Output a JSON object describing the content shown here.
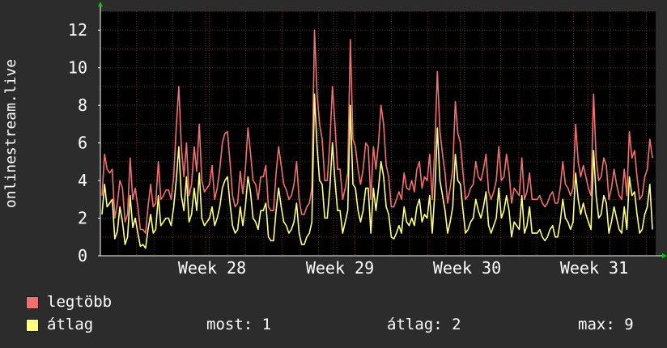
{
  "chart_data": {
    "type": "line",
    "ylabel": "onlinestream.live",
    "ylim": [
      0,
      13
    ],
    "y_ticks": [
      0,
      2,
      4,
      6,
      8,
      10,
      12
    ],
    "x_ticks": [
      "Week 28",
      "Week 29",
      "Week 30",
      "Week 31"
    ],
    "grid": true,
    "colors": {
      "background": "#2c2c2c",
      "plot": "#000000",
      "grid": "#5a2a2a",
      "axis": "#ffffff",
      "arrow": "#00cc00"
    },
    "series": [
      {
        "name": "legtöbb",
        "color": "#f07070",
        "values": [
          3.2,
          5.4,
          4.6,
          4.4,
          4.6,
          2.0,
          2.8,
          4.0,
          3.6,
          1.8,
          2.2,
          5.2,
          3.0,
          3.6,
          2.6,
          1.4,
          1.4,
          1.2,
          2.6,
          3.8,
          2.6,
          2.8,
          5.0,
          3.0,
          3.2,
          3.5,
          3.5,
          3.0,
          4.2,
          6.8,
          9.0,
          5.8,
          4.2,
          6.0,
          3.2,
          3.8,
          5.8,
          4.5,
          7.0,
          4.0,
          3.4,
          3.6,
          3.8,
          4.8,
          3.0,
          3.6,
          4.6,
          6.0,
          6.5,
          6.6,
          5.0,
          3.2,
          2.6,
          2.8,
          4.5,
          3.3,
          4.6,
          6.8,
          5.5,
          4.0,
          3.8,
          3.0,
          4.2,
          4.2,
          4.8,
          2.6,
          2.4,
          2.4,
          4.4,
          5.8,
          4.8,
          3.8,
          3.5,
          3.0,
          3.2,
          3.8,
          5.0,
          3.0,
          2.2,
          2.2,
          2.6,
          2.8,
          3.6,
          12.0,
          8.6,
          7.0,
          6.2,
          4.0,
          4.0,
          6.0,
          9.0,
          7.0,
          4.6,
          4.6,
          3.0,
          3.6,
          4.4,
          11.5,
          6.2,
          5.8,
          4.6,
          3.8,
          4.6,
          6.0,
          5.8,
          3.0,
          5.8,
          4.6,
          6.0,
          8.0,
          7.0,
          4.8,
          4.2,
          2.6,
          2.6,
          3.0,
          3.4,
          3.0,
          4.4,
          3.6,
          3.5,
          4.0,
          3.4,
          4.6,
          5.0,
          3.6,
          4.2,
          4.0,
          5.4,
          3.0,
          5.8,
          9.8,
          6.6,
          5.4,
          4.4,
          2.8,
          3.6,
          4.6,
          8.2,
          6.5,
          6.0,
          4.4,
          3.0,
          3.2,
          3.6,
          3.8,
          5.0,
          4.2,
          4.0,
          4.6,
          5.4,
          3.4,
          3.0,
          3.4,
          4.0,
          5.8,
          4.0,
          4.2,
          5.4,
          4.4,
          2.8,
          3.6,
          3.4,
          3.2,
          5.2,
          3.0,
          3.4,
          4.4,
          3.0,
          3.0,
          3.0,
          3.2,
          2.8,
          2.6,
          2.8,
          3.2,
          3.4,
          2.8,
          2.8,
          3.6,
          5.0,
          3.8,
          3.6,
          3.2,
          3.6,
          7.0,
          5.0,
          4.2,
          4.8,
          4.2,
          3.6,
          3.2,
          8.6,
          5.2,
          4.0,
          4.2,
          5.2,
          4.8,
          3.0,
          3.6,
          4.6,
          3.8,
          3.2,
          3.0,
          4.6,
          3.2,
          6.6,
          5.2,
          5.6,
          4.2,
          3.0,
          3.2,
          4.2,
          4.6,
          6.2,
          5.2
        ]
      },
      {
        "name": "átlag",
        "color": "#ffff80",
        "values": [
          2.2,
          3.8,
          2.6,
          2.8,
          3.0,
          0.9,
          1.3,
          2.6,
          1.8,
          0.6,
          1.0,
          3.2,
          1.5,
          2.0,
          1.2,
          0.5,
          0.6,
          0.4,
          1.4,
          2.2,
          1.2,
          1.4,
          3.2,
          1.6,
          1.8,
          2.0,
          2.0,
          1.6,
          2.6,
          4.0,
          5.8,
          3.2,
          2.4,
          4.2,
          1.8,
          2.2,
          3.6,
          2.4,
          4.4,
          2.0,
          1.6,
          1.8,
          2.0,
          2.6,
          1.6,
          2.0,
          2.6,
          3.6,
          4.0,
          4.2,
          2.8,
          1.6,
          1.2,
          1.4,
          2.6,
          1.6,
          2.6,
          4.2,
          3.4,
          2.0,
          1.8,
          1.4,
          2.4,
          2.4,
          2.8,
          1.0,
          0.8,
          0.8,
          2.4,
          3.6,
          2.6,
          1.8,
          1.6,
          1.2,
          1.4,
          1.8,
          2.8,
          1.2,
          0.6,
          0.6,
          1.0,
          1.2,
          1.8,
          8.6,
          5.8,
          4.0,
          3.8,
          2.0,
          2.0,
          3.6,
          6.0,
          4.0,
          2.4,
          2.4,
          1.2,
          1.8,
          2.4,
          8.0,
          3.8,
          3.6,
          2.4,
          1.8,
          2.4,
          3.6,
          3.6,
          1.2,
          3.6,
          2.4,
          3.6,
          5.0,
          4.2,
          2.6,
          2.2,
          1.0,
          0.9,
          1.2,
          1.6,
          1.2,
          2.6,
          1.8,
          1.6,
          2.0,
          1.6,
          2.6,
          3.0,
          1.8,
          2.2,
          2.0,
          3.2,
          1.2,
          3.4,
          6.8,
          4.0,
          3.2,
          2.4,
          1.2,
          1.8,
          2.6,
          5.4,
          4.0,
          3.8,
          2.4,
          1.2,
          1.4,
          1.8,
          2.0,
          3.0,
          2.4,
          2.0,
          2.6,
          3.4,
          1.6,
          1.2,
          1.6,
          2.0,
          3.6,
          2.0,
          2.4,
          3.2,
          2.4,
          1.0,
          1.8,
          1.6,
          1.4,
          3.2,
          1.2,
          1.6,
          2.6,
          1.2,
          1.2,
          1.2,
          1.4,
          1.0,
          0.8,
          1.0,
          1.4,
          1.6,
          1.0,
          1.0,
          1.8,
          3.0,
          2.0,
          1.8,
          1.4,
          1.8,
          4.4,
          3.0,
          2.2,
          2.8,
          2.2,
          1.8,
          1.4,
          5.6,
          3.2,
          2.0,
          2.2,
          3.2,
          2.8,
          1.2,
          1.8,
          2.6,
          2.0,
          1.4,
          1.2,
          2.6,
          1.4,
          4.2,
          3.2,
          3.4,
          2.2,
          1.2,
          1.4,
          2.2,
          2.6,
          3.8,
          1.4
        ]
      }
    ]
  },
  "legend": {
    "items": [
      {
        "label": "legtöbb",
        "color": "#f07070"
      },
      {
        "label": "átlag",
        "color": "#ffff80"
      }
    ],
    "stats": {
      "most": "most: 1",
      "atlag": "átlag: 2",
      "max": "max: 9"
    }
  }
}
